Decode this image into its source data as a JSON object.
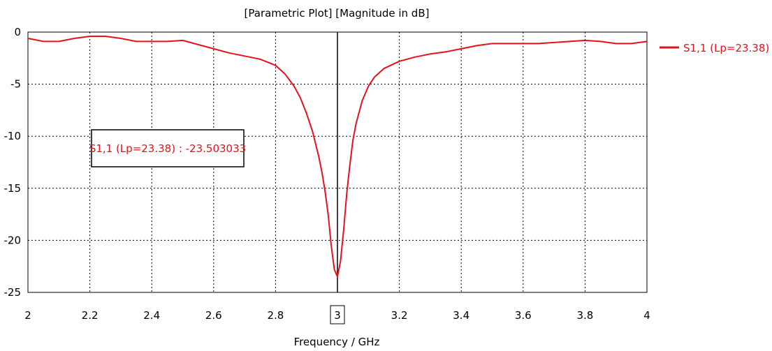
{
  "chart_data": {
    "type": "line",
    "title": "[Parametric Plot] [Magnitude in dB]",
    "xlabel": "Frequency / GHz",
    "ylabel": "",
    "xlim": [
      2,
      4
    ],
    "ylim": [
      -25,
      0
    ],
    "x_ticks": [
      "2",
      "2.2",
      "2.4",
      "2.6",
      "2.8",
      "3",
      "3.2",
      "3.4",
      "3.6",
      "3.8",
      "4"
    ],
    "y_ticks": [
      "0",
      "-5",
      "-10",
      "-15",
      "-20",
      "-25"
    ],
    "grid": true,
    "legend_position": "right",
    "series": [
      {
        "name": "S1,1 (Lp=23.38)",
        "color": "#e8101c",
        "x": [
          2.0,
          2.05,
          2.1,
          2.15,
          2.2,
          2.25,
          2.3,
          2.35,
          2.4,
          2.45,
          2.5,
          2.55,
          2.6,
          2.65,
          2.7,
          2.75,
          2.8,
          2.83,
          2.86,
          2.88,
          2.9,
          2.92,
          2.94,
          2.95,
          2.96,
          2.97,
          2.98,
          2.99,
          3.0,
          3.01,
          3.02,
          3.03,
          3.04,
          3.05,
          3.06,
          3.08,
          3.1,
          3.12,
          3.15,
          3.2,
          3.25,
          3.3,
          3.35,
          3.4,
          3.45,
          3.5,
          3.55,
          3.6,
          3.65,
          3.7,
          3.75,
          3.8,
          3.85,
          3.9,
          3.95,
          4.0
        ],
        "y": [
          -0.6,
          -0.9,
          -0.9,
          -0.6,
          -0.4,
          -0.4,
          -0.6,
          -0.9,
          -0.9,
          -0.9,
          -0.8,
          -1.2,
          -1.6,
          -2.0,
          -2.3,
          -2.6,
          -3.2,
          -4.0,
          -5.2,
          -6.3,
          -7.8,
          -9.6,
          -12.0,
          -13.5,
          -15.3,
          -17.5,
          -20.5,
          -22.8,
          -23.5,
          -22.0,
          -19.0,
          -15.5,
          -12.8,
          -10.4,
          -8.8,
          -6.6,
          -5.2,
          -4.3,
          -3.5,
          -2.8,
          -2.4,
          -2.1,
          -1.9,
          -1.6,
          -1.3,
          -1.1,
          -1.1,
          -1.1,
          -1.1,
          -1.0,
          -0.9,
          -0.8,
          -0.9,
          -1.1,
          -1.1,
          -0.9
        ]
      }
    ],
    "marker": {
      "x": 3,
      "x_label": "3",
      "text": "S1,1 (Lp=23.38) : -23.503033"
    }
  }
}
